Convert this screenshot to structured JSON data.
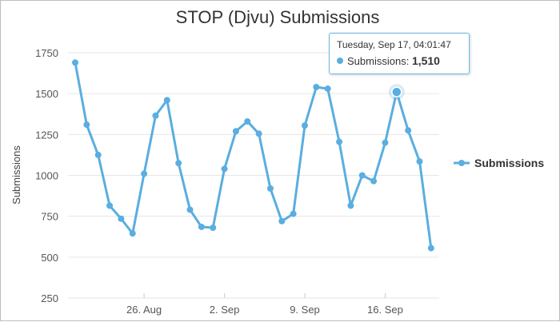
{
  "chart_data": {
    "type": "line",
    "title": "STOP (Djvu) Submissions",
    "xlabel": "",
    "ylabel": "Submissions",
    "x_tick_labels": [
      "26. Aug",
      "2. Sep",
      "9. Sep",
      "16. Sep"
    ],
    "y_ticks": [
      250,
      500,
      750,
      1000,
      1250,
      1500,
      1750
    ],
    "ylim": [
      250,
      1750
    ],
    "grid": true,
    "legend": "right",
    "series": [
      {
        "name": "Submissions",
        "color": "#5aaee0",
        "x": [
          "Aug 20",
          "Aug 21",
          "Aug 22",
          "Aug 23",
          "Aug 24",
          "Aug 25",
          "Aug 26",
          "Aug 27",
          "Aug 28",
          "Aug 29",
          "Aug 30",
          "Aug 31",
          "Sep 1",
          "Sep 2",
          "Sep 3",
          "Sep 4",
          "Sep 5",
          "Sep 6",
          "Sep 7",
          "Sep 8",
          "Sep 9",
          "Sep 10",
          "Sep 11",
          "Sep 12",
          "Sep 13",
          "Sep 14",
          "Sep 15",
          "Sep 16",
          "Sep 17",
          "Sep 18",
          "Sep 19",
          "Sep 20"
        ],
        "values": [
          1690,
          1310,
          1125,
          815,
          735,
          645,
          1010,
          1365,
          1460,
          1075,
          790,
          685,
          680,
          1040,
          1270,
          1330,
          1255,
          920,
          720,
          765,
          1305,
          1540,
          1530,
          1205,
          815,
          1000,
          965,
          1200,
          1510,
          1275,
          1085,
          555
        ]
      }
    ],
    "x_tick_positions": [
      "Aug 26",
      "Sep 2",
      "Sep 9",
      "Sep 16"
    ]
  },
  "tooltip": {
    "date": "Tuesday, Sep 17, 04:01:47",
    "series_label": "Submissions:",
    "value": "1,510",
    "point_x": "Sep 17"
  }
}
